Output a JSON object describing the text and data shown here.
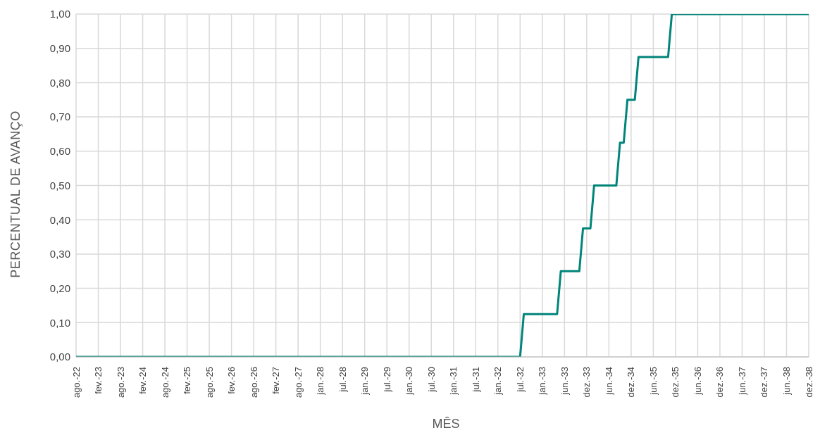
{
  "chart_data": {
    "type": "line",
    "xlabel": "MÊS",
    "ylabel": "PERCENTUAL DE AVANÇO",
    "categories": [
      "ago.-22",
      null,
      null,
      null,
      null,
      null,
      "fev.-23",
      null,
      null,
      null,
      null,
      null,
      "ago.-23",
      null,
      null,
      null,
      null,
      null,
      "fev.-24",
      null,
      null,
      null,
      null,
      null,
      "ago.-24",
      null,
      null,
      null,
      null,
      null,
      "fev.-25",
      null,
      null,
      null,
      null,
      null,
      "ago.-25",
      null,
      null,
      null,
      null,
      null,
      "fev.-26",
      null,
      null,
      null,
      null,
      null,
      "ago.-26",
      null,
      null,
      null,
      null,
      null,
      "fev.-27",
      null,
      null,
      null,
      null,
      null,
      "ago.-27",
      null,
      null,
      null,
      null,
      null,
      "jan.-28",
      null,
      null,
      null,
      null,
      null,
      "jul.-28",
      null,
      null,
      null,
      null,
      null,
      "jan.-29",
      null,
      null,
      null,
      null,
      null,
      "jul.-29",
      null,
      null,
      null,
      null,
      null,
      "jan.-30",
      null,
      null,
      null,
      null,
      null,
      "jul.-30",
      null,
      null,
      null,
      null,
      null,
      "jan.-31",
      null,
      null,
      null,
      null,
      null,
      "jul.-31",
      null,
      null,
      null,
      null,
      null,
      "jan.-32",
      null,
      null,
      null,
      null,
      null,
      "jul.-32",
      null,
      null,
      null,
      null,
      null,
      "jan.-33",
      null,
      null,
      null,
      null,
      null,
      "jun.-33",
      null,
      null,
      null,
      null,
      null,
      "dez.-33",
      null,
      null,
      null,
      null,
      null,
      "jun.-34",
      null,
      null,
      null,
      null,
      null,
      "dez.-34",
      null,
      null,
      null,
      null,
      null,
      "jun.-35",
      null,
      null,
      null,
      null,
      null,
      "dez.-35",
      null,
      null,
      null,
      null,
      null,
      "jun.-36",
      null,
      null,
      null,
      null,
      null,
      "dez.-36",
      null,
      null,
      null,
      null,
      null,
      "jun.-37",
      null,
      null,
      null,
      null,
      null,
      "dez.-37",
      null,
      null,
      null,
      null,
      null,
      "jun.-38",
      null,
      null,
      null,
      null,
      null,
      "dez.-38"
    ],
    "series": [
      {
        "color": "#00857a",
        "values": [
          0,
          0,
          0,
          0,
          0,
          0,
          0,
          0,
          0,
          0,
          0,
          0,
          0,
          0,
          0,
          0,
          0,
          0,
          0,
          0,
          0,
          0,
          0,
          0,
          0,
          0,
          0,
          0,
          0,
          0,
          0,
          0,
          0,
          0,
          0,
          0,
          0,
          0,
          0,
          0,
          0,
          0,
          0,
          0,
          0,
          0,
          0,
          0,
          0,
          0,
          0,
          0,
          0,
          0,
          0,
          0,
          0,
          0,
          0,
          0,
          0,
          0,
          0,
          0,
          0,
          0,
          0,
          0,
          0,
          0,
          0,
          0,
          0,
          0,
          0,
          0,
          0,
          0,
          0,
          0,
          0,
          0,
          0,
          0,
          0,
          0,
          0,
          0,
          0,
          0,
          0,
          0,
          0,
          0,
          0,
          0,
          0,
          0,
          0,
          0,
          0,
          0,
          0,
          0,
          0,
          0,
          0,
          0,
          0,
          0,
          0,
          0,
          0,
          0,
          0,
          0,
          0,
          0,
          0,
          0,
          0,
          0.125,
          0.125,
          0.125,
          0.125,
          0.125,
          0.125,
          0.125,
          0.125,
          0.125,
          0.125,
          0.25,
          0.25,
          0.25,
          0.25,
          0.25,
          0.25,
          0.375,
          0.375,
          0.375,
          0.5,
          0.5,
          0.5,
          0.5,
          0.5,
          0.5,
          0.5,
          0.625,
          0.625,
          0.75,
          0.75,
          0.75,
          0.875,
          0.875,
          0.875,
          0.875,
          0.875,
          0.875,
          0.875,
          0.875,
          0.875,
          1,
          1,
          1,
          1,
          1,
          1,
          1,
          1,
          1,
          1,
          1,
          1,
          1,
          1,
          1,
          1,
          1,
          1,
          1,
          1,
          1,
          1,
          1,
          1,
          1,
          1,
          1,
          1,
          1,
          1,
          1,
          1,
          1,
          1,
          1,
          1,
          1,
          1
        ]
      }
    ],
    "ylim": [
      0,
      1
    ],
    "yticks": [
      {
        "value": 0,
        "label": "0,00"
      },
      {
        "value": 0.1,
        "label": "0,10"
      },
      {
        "value": 0.2,
        "label": "0,20"
      },
      {
        "value": 0.3,
        "label": "0,30"
      },
      {
        "value": 0.4,
        "label": "0,40"
      },
      {
        "value": 0.5,
        "label": "0,50"
      },
      {
        "value": 0.6,
        "label": "0,60"
      },
      {
        "value": 0.7,
        "label": "0,70"
      },
      {
        "value": 0.8,
        "label": "0,80"
      },
      {
        "value": 0.9,
        "label": "0,90"
      },
      {
        "value": 1,
        "label": "1,00"
      }
    ],
    "grid": true,
    "marker": "none",
    "line_style": "solid"
  }
}
